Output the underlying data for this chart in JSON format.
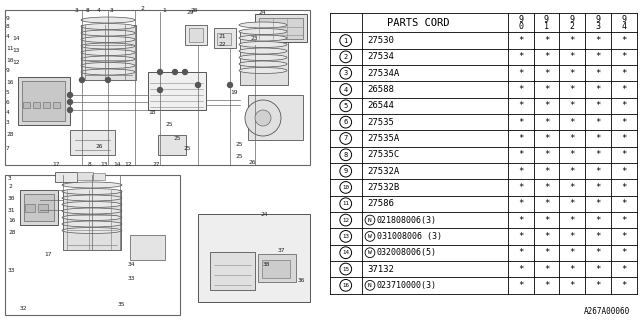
{
  "title": "A267A00060",
  "bg_color": "#ffffff",
  "table_header": "PARTS CORD",
  "col_headers": [
    "9\n0",
    "9\n1",
    "9\n2",
    "9\n3",
    "9\n4"
  ],
  "rows": [
    {
      "num": "1",
      "part": "27530",
      "special": false,
      "prefix": ""
    },
    {
      "num": "2",
      "part": "27534",
      "special": false,
      "prefix": ""
    },
    {
      "num": "3",
      "part": "27534A",
      "special": false,
      "prefix": ""
    },
    {
      "num": "4",
      "part": "26588",
      "special": false,
      "prefix": ""
    },
    {
      "num": "5",
      "part": "26544",
      "special": false,
      "prefix": ""
    },
    {
      "num": "6",
      "part": "27535",
      "special": false,
      "prefix": ""
    },
    {
      "num": "7",
      "part": "27535A",
      "special": false,
      "prefix": ""
    },
    {
      "num": "8",
      "part": "27535C",
      "special": false,
      "prefix": ""
    },
    {
      "num": "9",
      "part": "27532A",
      "special": false,
      "prefix": ""
    },
    {
      "num": "10",
      "part": "27532B",
      "special": false,
      "prefix": ""
    },
    {
      "num": "11",
      "part": "27586",
      "special": false,
      "prefix": ""
    },
    {
      "num": "12",
      "part": "021808006(3)",
      "special": true,
      "prefix": "N"
    },
    {
      "num": "13",
      "part": "031008006 (3)",
      "special": true,
      "prefix": "W"
    },
    {
      "num": "14",
      "part": "032008006(5)",
      "special": true,
      "prefix": "W"
    },
    {
      "num": "15",
      "part": "37132",
      "special": false,
      "prefix": ""
    },
    {
      "num": "16",
      "part": "023710000(3)",
      "special": true,
      "prefix": "N"
    }
  ],
  "star": "*",
  "line_color": "#000000",
  "text_color": "#000000",
  "diagram_color": "#333333",
  "light_gray": "#aaaaaa"
}
